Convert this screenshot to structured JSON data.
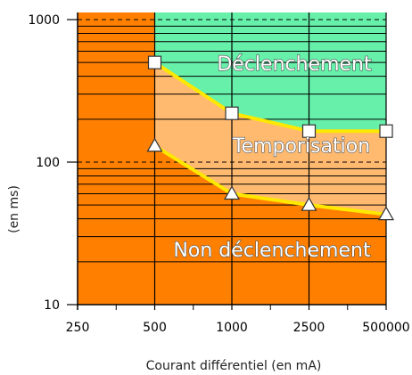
{
  "chart_data": {
    "type": "area",
    "x_scale": "categorical",
    "y_scale": "log",
    "categories": [
      "250",
      "500",
      "1000",
      "2500",
      "500000"
    ],
    "ylim": [
      10,
      1000
    ],
    "y_ticks": [
      {
        "value": 10,
        "label": "10"
      },
      {
        "value": 100,
        "label": "100"
      },
      {
        "value": 1000,
        "label": "1000"
      }
    ],
    "xlabel": "Courant différentiel (en mA)",
    "ylabel": "(en ms)",
    "grid": "horizontal",
    "series": [
      {
        "name": "Déclenchement",
        "values": [
          null,
          500,
          220,
          165,
          165
        ],
        "marker": "square"
      },
      {
        "name": "Non déclenchement",
        "values": [
          null,
          130,
          60,
          50,
          43
        ],
        "marker": "triangle"
      }
    ],
    "regions": [
      {
        "label": "Déclenchement",
        "color": "#66F0AA"
      },
      {
        "label": "Temporisation",
        "color": "#FFBA70"
      },
      {
        "label": "Non déclenchement",
        "color": "#FF8000"
      }
    ],
    "boundary_color": "#FFE800"
  }
}
